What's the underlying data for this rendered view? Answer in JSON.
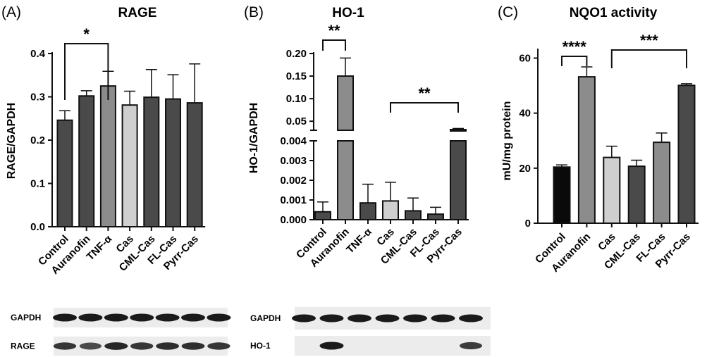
{
  "panels": [
    {
      "letter": "(A)",
      "title": "RAGE"
    },
    {
      "letter": "(B)",
      "title": "HO-1"
    },
    {
      "letter": "(C)",
      "title": "NQO1 activity"
    }
  ],
  "chart_data": [
    {
      "type": "bar",
      "title": "RAGE",
      "ylabel": "RAGE/GAPDH",
      "categories": [
        "Control",
        "Auranofin",
        "TNF-α",
        "Cas",
        "CML-Cas",
        "FL-Cas",
        "Pyrr-Cas"
      ],
      "values": [
        0.246,
        0.302,
        0.325,
        0.281,
        0.299,
        0.295,
        0.286
      ],
      "errors": [
        0.022,
        0.012,
        0.034,
        0.032,
        0.064,
        0.056,
        0.09
      ],
      "colors": [
        "#4a4a4a",
        "#4a4a4a",
        "#8c8c8c",
        "#cfcfcf",
        "#4a4a4a",
        "#4a4a4a",
        "#4a4a4a"
      ],
      "ylim": [
        0,
        0.4
      ],
      "yticks": [
        "0.0",
        "0.1",
        "0.2",
        "0.3",
        "0.4"
      ],
      "annotations": [
        {
          "from": "Control",
          "to": "TNF-α",
          "label": "*"
        }
      ]
    },
    {
      "type": "bar",
      "title": "HO-1",
      "ylabel": "HO-1/GAPDH",
      "broken_axis": true,
      "lower_ylim": [
        0,
        0.004
      ],
      "upper_ylim": [
        0.03,
        0.2
      ],
      "categories": [
        "Control",
        "Auranofin",
        "TNF-α",
        "Cas",
        "CML-Cas",
        "FL-Cas",
        "Pyrr-Cas"
      ],
      "values": [
        0.0004,
        0.15,
        0.00085,
        0.00095,
        0.00045,
        0.00028,
        0.027
      ],
      "errors": [
        0.0005,
        0.04,
        0.00095,
        0.00095,
        0.00065,
        0.00035,
        0.008
      ],
      "colors": [
        "#4a4a4a",
        "#8c8c8c",
        "#4a4a4a",
        "#cfcfcf",
        "#4a4a4a",
        "#4a4a4a",
        "#4a4a4a"
      ],
      "yticks_lower": [
        "0.000",
        "0.001",
        "0.002",
        "0.003",
        "0.004"
      ],
      "yticks_upper": [
        "0.05",
        "0.10",
        "0.15",
        "0.20"
      ],
      "annotations": [
        {
          "from": "Control",
          "to": "Auranofin",
          "label": "**"
        },
        {
          "from": "Cas",
          "to": "Pyrr-Cas",
          "label": "**"
        }
      ]
    },
    {
      "type": "bar",
      "title": "NQO1 activity",
      "ylabel": "mU/mg protein",
      "categories": [
        "Control",
        "Auranofin",
        "Cas",
        "CML-Cas",
        "FL-Cas",
        "Pyrr-Cas"
      ],
      "values": [
        20.4,
        53.2,
        23.9,
        20.7,
        29.4,
        50.1
      ],
      "errors": [
        0.8,
        3.6,
        4.1,
        2.2,
        3.4,
        0.6
      ],
      "colors": [
        "#0a0a0a",
        "#8c8c8c",
        "#cfcfcf",
        "#4a4a4a",
        "#8c8c8c",
        "#4a4a4a"
      ],
      "ylim": [
        0,
        65
      ],
      "yticks": [
        "0",
        "20",
        "40",
        "60"
      ],
      "annotations": [
        {
          "from": "Control",
          "to": "Auranofin",
          "label": "****"
        },
        {
          "from": "Cas",
          "to": "Pyrr-Cas",
          "label": "***"
        }
      ]
    }
  ],
  "blots": [
    {
      "label": "GAPDH",
      "lanes": [
        1,
        1,
        1,
        1,
        1,
        1,
        1
      ]
    },
    {
      "label": "RAGE",
      "lanes": [
        0.8,
        0.65,
        0.9,
        0.8,
        0.85,
        0.85,
        0.8
      ]
    },
    {
      "label": "GAPDH",
      "lanes": [
        1,
        1,
        1,
        1,
        1,
        1,
        1
      ]
    },
    {
      "label": "HO-1",
      "lanes": [
        0,
        1,
        0,
        0,
        0,
        0,
        0.75
      ]
    }
  ]
}
